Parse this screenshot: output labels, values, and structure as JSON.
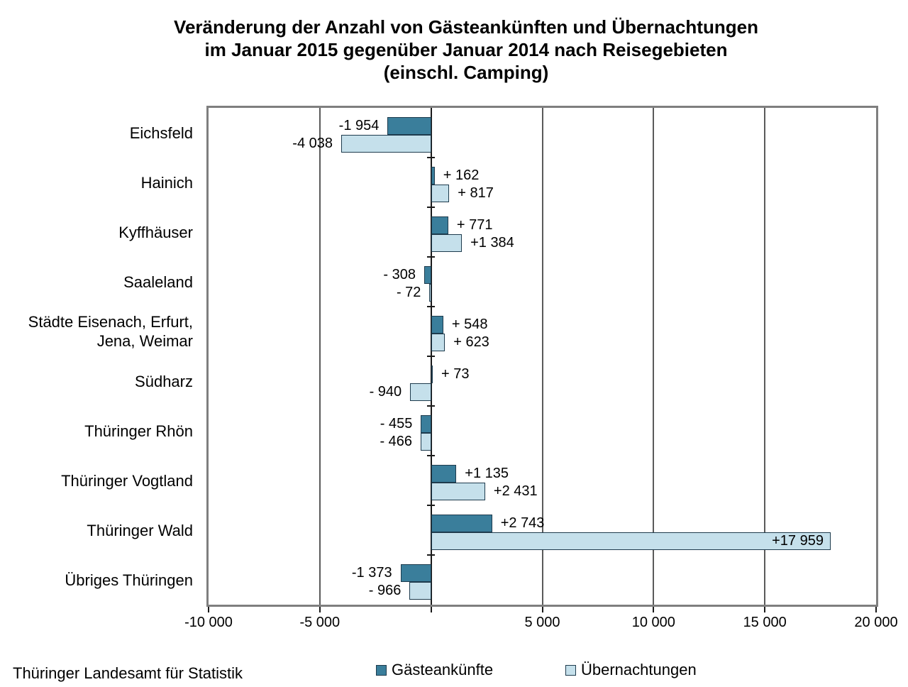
{
  "title": {
    "lines": [
      "Veränderung der Anzahl von Gästeankünften und Übernachtungen",
      "im Januar 2015 gegenüber Januar 2014 nach Reisegebieten",
      "(einschl. Camping)"
    ]
  },
  "source": "Thüringer Landesamt für Statistik",
  "colors": {
    "arrivals_bar": "#3a7e9b",
    "overnights_bar": "#c5e0eb",
    "bar_border": "#1e3b4d",
    "plot_border": "#7f7f7f",
    "gridline": "#5a5a5a",
    "zero_line": "#1a1a1a"
  },
  "chart_data": {
    "type": "bar",
    "orientation": "horizontal",
    "title": "Veränderung der Anzahl von Gästeankünften und Übernachtungen im Januar 2015 gegenüber Januar 2014 nach Reisegebieten (einschl. Camping)",
    "categories": [
      "Eichsfeld",
      "Hainich",
      "Kyffhäuser",
      "Saaleland",
      "Städte Eisenach, Erfurt,\nJena, Weimar",
      "Südharz",
      "Thüringer Rhön",
      "Thüringer Vogtland",
      "Thüringer Wald",
      "Übriges Thüringen"
    ],
    "series": [
      {
        "name": "Gästeankünfte",
        "color": "#3a7e9b",
        "values": [
          -1954,
          162,
          771,
          -308,
          548,
          73,
          -455,
          1135,
          2743,
          -1373
        ],
        "labels": [
          "-1 954",
          "+ 162",
          "+ 771",
          "- 308",
          "+ 548",
          "+ 73",
          "- 455",
          "+1 135",
          "+2 743",
          "-1 373"
        ]
      },
      {
        "name": "Übernachtungen",
        "color": "#c5e0eb",
        "values": [
          -4038,
          817,
          1384,
          -72,
          623,
          -940,
          -466,
          2431,
          17959,
          -966
        ],
        "labels": [
          "-4 038",
          "+ 817",
          "+1 384",
          "- 72",
          "+ 623",
          "- 940",
          "- 466",
          "+2 431",
          "+17 959",
          "- 966"
        ]
      }
    ],
    "xlim": [
      -10000,
      20000
    ],
    "xticks": [
      {
        "value": -10000,
        "label": "-10 000"
      },
      {
        "value": -5000,
        "label": "-5 000"
      },
      {
        "value": 0,
        "label": ""
      },
      {
        "value": 5000,
        "label": "5 000"
      },
      {
        "value": 10000,
        "label": "10 000"
      },
      {
        "value": 15000,
        "label": "15 000"
      },
      {
        "value": 20000,
        "label": "20 000"
      }
    ],
    "grid": true,
    "legend_position": "bottom"
  }
}
